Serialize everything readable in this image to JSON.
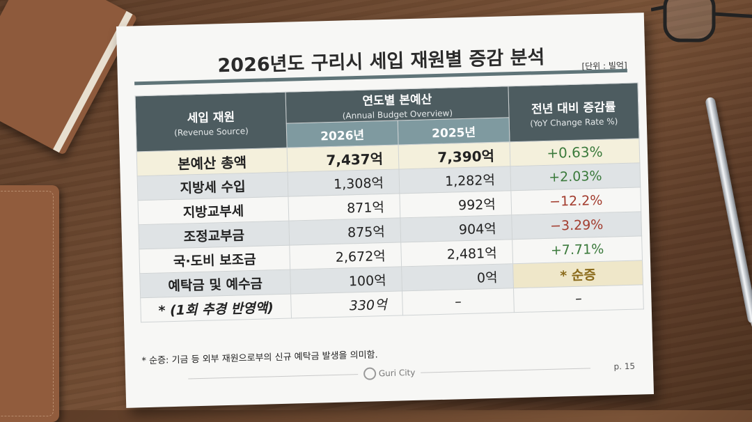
{
  "title": "2026년도 구리시 세입 재원별 증감 분석",
  "unit": "[단위 : 빌억]",
  "header": {
    "source_ko": "세입 재원",
    "source_en": "(Revenue Source)",
    "budget_ko": "연도별 본예산",
    "budget_en": "(Annual Budget Overview)",
    "year_2026": "2026년",
    "year_2025": "2025년",
    "change_ko": "전년 대비 증감률",
    "change_en": "(YoY Change Rate %)"
  },
  "rows": [
    {
      "source": "본예산 총액",
      "y2026": "7,437억",
      "y2025": "7,390억",
      "change": "+0.63%"
    },
    {
      "source": "지방세 수입",
      "y2026": "1,308억",
      "y2025": "1,282억",
      "change": "+2.03%"
    },
    {
      "source": "지방교부세",
      "y2026": "871억",
      "y2025": "992억",
      "change": "−12.2%"
    },
    {
      "source": "조정교부금",
      "y2026": "875억",
      "y2025": "904억",
      "change": "−3.29%"
    },
    {
      "source": "국·도비 보조금",
      "y2026": "2,672억",
      "y2025": "2,481억",
      "change": "+7.71%"
    },
    {
      "source": "예탁금 및 예수금",
      "y2026": "100억",
      "y2025": "0억",
      "change": "* 순증"
    },
    {
      "source": "* (1회 추경 반영액)",
      "y2026": "330억",
      "y2025": "–",
      "change": "–"
    }
  ],
  "footnote": "* 순증: 기금 등 외부 재원으로부의 신규 예탁금 발생을 의미함.",
  "logo_text": "Guri City",
  "page": "p. 15",
  "colors": {
    "header": "#4d5c60",
    "year_header": "#7f9aa0",
    "positive": "#3b7a3c",
    "negative": "#a33d2f",
    "highlight": "#f4f0dc"
  }
}
